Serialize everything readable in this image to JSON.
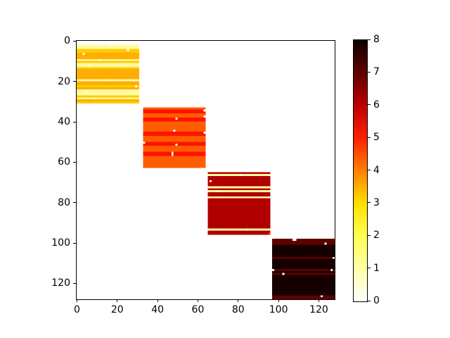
{
  "chart_data": {
    "type": "heatmap",
    "title": "",
    "xlabel": "",
    "ylabel": "",
    "colormap": "hot_r",
    "vmin": 0,
    "vmax": 8,
    "grid": {
      "rows": 128,
      "cols": 128
    },
    "background_value": 0,
    "background_color": "#FFFFFF",
    "axes": {
      "xticks": [
        0,
        20,
        40,
        60,
        80,
        100,
        120
      ],
      "yticks": [
        0,
        20,
        40,
        60,
        80,
        100,
        120
      ],
      "y_direction": "downward"
    },
    "colorbar": {
      "ticks": [
        0,
        1,
        2,
        3,
        4,
        5,
        6,
        7,
        8
      ],
      "position": "right",
      "gradient_bottom_to_top": [
        "#FFFFFF",
        "#FFFFA8",
        "#FFFF50",
        "#FFE000",
        "#FF8000",
        "#FF2000",
        "#BF0000",
        "#600000",
        "#0B0000"
      ]
    },
    "blocks": [
      {
        "name": "block-1",
        "rows": [
          2,
          30
        ],
        "cols": [
          0,
          30
        ],
        "base": {
          "value": 3.5,
          "color": "#FFAD00"
        },
        "stripes": [
          {
            "name": "pale-yellow",
            "value": 1.0,
            "color": "#FFF9A0",
            "rows": [
              2,
              3,
              9,
              11,
              12,
              19,
              24,
              25,
              26,
              28
            ]
          },
          {
            "name": "golden-yellow",
            "value": 3.0,
            "color": "#FFCC00",
            "rows": [
              4,
              5,
              10,
              13,
              22,
              27,
              30
            ]
          }
        ],
        "white_cells": [
          [
            2,
            16
          ],
          [
            4,
            25
          ],
          [
            6,
            3
          ],
          [
            9,
            11
          ],
          [
            11,
            22
          ],
          [
            12,
            6
          ],
          [
            19,
            17
          ],
          [
            19,
            28
          ],
          [
            22,
            29
          ],
          [
            25,
            4
          ],
          [
            28,
            8
          ]
        ]
      },
      {
        "name": "block-2",
        "rows": [
          33,
          62
        ],
        "cols": [
          33,
          63
        ],
        "base": {
          "value": 4.4,
          "color": "#FF5C00"
        },
        "stripes": [
          {
            "name": "red",
            "value": 5.1,
            "color": "#FF1300",
            "rows": [
              34,
              35,
              38,
              39,
              45,
              46,
              50,
              51,
              55,
              56
            ]
          }
        ],
        "white_cells": [
          [
            34,
            63
          ],
          [
            37,
            63
          ],
          [
            38,
            49
          ],
          [
            44,
            48
          ],
          [
            45,
            63
          ],
          [
            50,
            33
          ],
          [
            51,
            49
          ],
          [
            55,
            47
          ],
          [
            56,
            47
          ]
        ]
      },
      {
        "name": "block-3",
        "rows": [
          65,
          95
        ],
        "cols": [
          65,
          95
        ],
        "base": {
          "value": 6.1,
          "color": "#B00000"
        },
        "stripes": [
          {
            "name": "pale-yellow",
            "value": 1.0,
            "color": "#FFF9A0",
            "rows": [
              66,
              72,
              74,
              77,
              93
            ]
          }
        ],
        "white_cells": [
          [
            66,
            81
          ],
          [
            69,
            66
          ],
          [
            74,
            69
          ],
          [
            77,
            95
          ],
          [
            93,
            84
          ]
        ]
      },
      {
        "name": "block-4",
        "rows": [
          98,
          127
        ],
        "cols": [
          97,
          127
        ],
        "base": {
          "value": 7.8,
          "color": "#160000"
        },
        "stripes": [
          {
            "name": "maroon",
            "value": 7.0,
            "color": "#5E0000",
            "rows": [
              98,
              99,
              100,
              107,
              113,
              115,
              126,
              127
            ]
          }
        ],
        "white_cells": [
          [
            98,
            107
          ],
          [
            98,
            108
          ],
          [
            100,
            123
          ],
          [
            107,
            127
          ],
          [
            113,
            97
          ],
          [
            113,
            126
          ],
          [
            115,
            102
          ],
          [
            126,
            121
          ]
        ]
      }
    ],
    "extra_cells": [
      {
        "row": 95,
        "col": 95,
        "value": 4.9,
        "color": "#F03000"
      }
    ]
  }
}
